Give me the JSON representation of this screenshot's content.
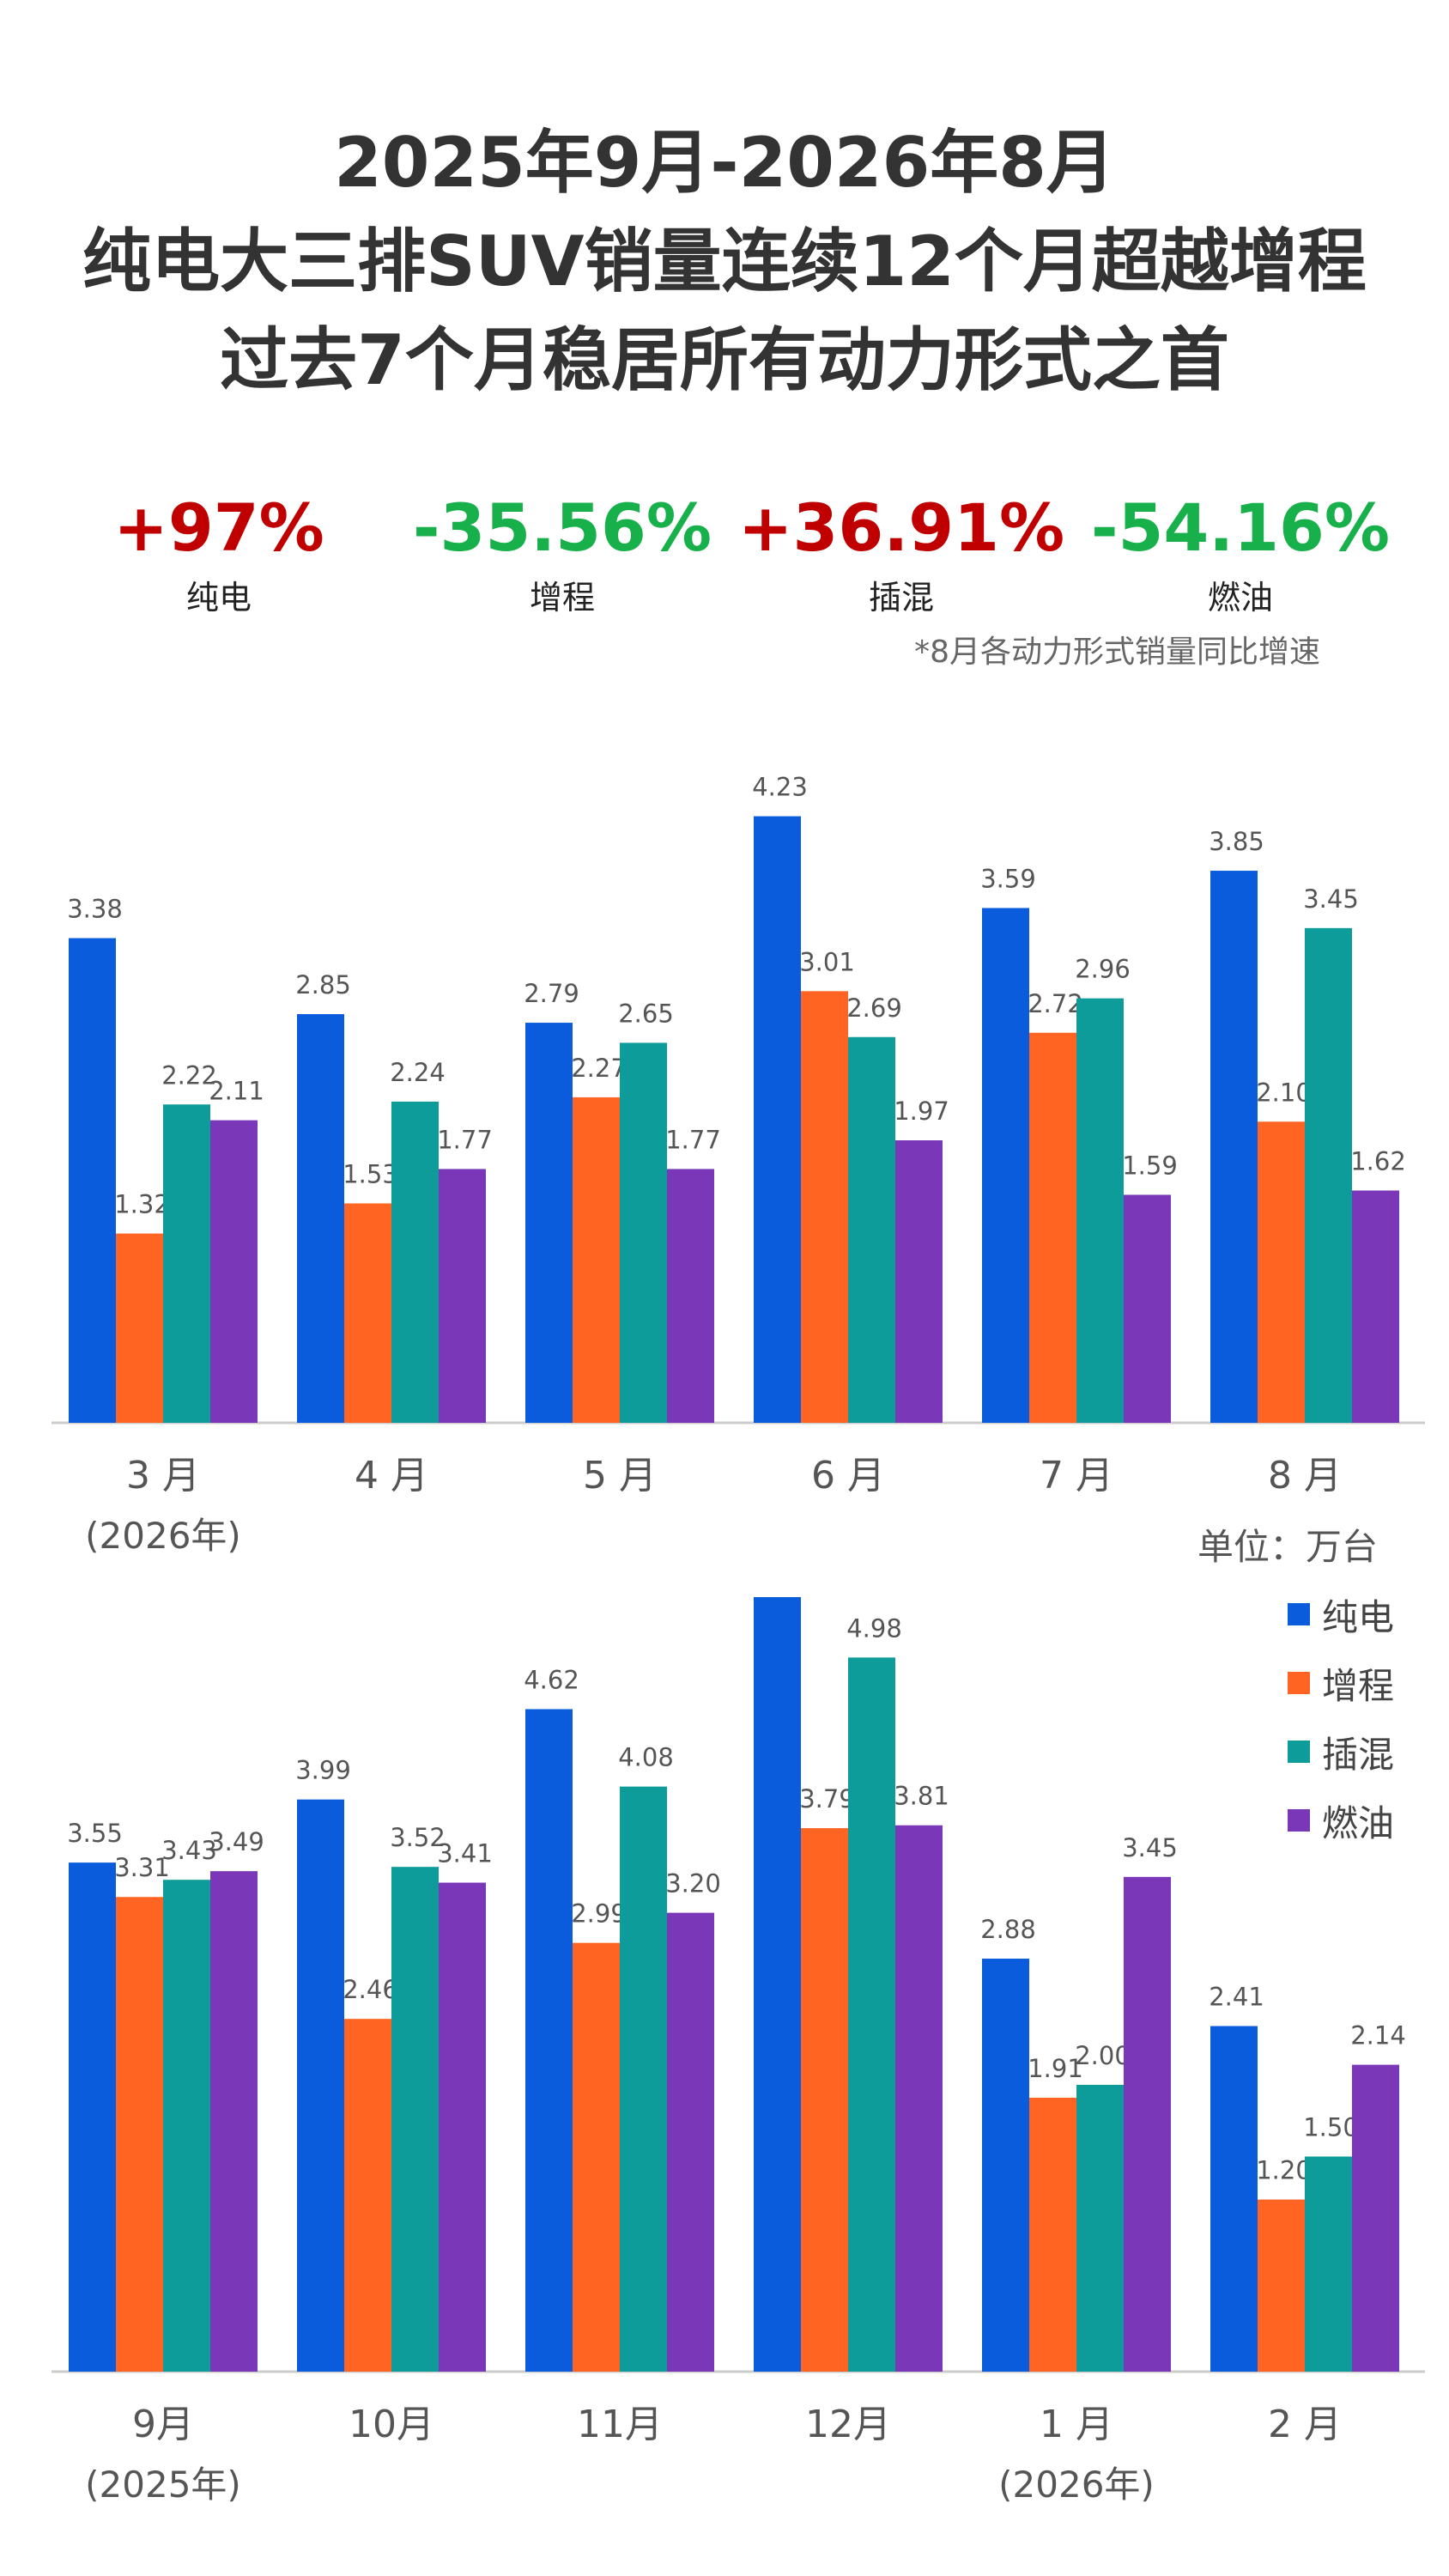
{
  "title_lines": [
    "2025年9月-2026年8月",
    "纯电大三排SUV销量连续12个月超越增程",
    "过去7个月稳居所有动力形式之首"
  ],
  "stats": [
    {
      "value": "+97%",
      "label": "纯电",
      "color": "#c00000"
    },
    {
      "value": "-35.56%",
      "label": "增程",
      "color": "#17b04a"
    },
    {
      "value": "+36.91%",
      "label": "插混",
      "color": "#c00000"
    },
    {
      "value": "-54.16%",
      "label": "燃油",
      "color": "#17b04a"
    }
  ],
  "footnote": "*8月各动力形式销量同比增速",
  "unit": "单位：万台",
  "legend": [
    {
      "name": "纯电",
      "color": "#0a5cdd"
    },
    {
      "name": "增程",
      "color": "#ff6422"
    },
    {
      "name": "插混",
      "color": "#0e9c9a"
    },
    {
      "name": "燃油",
      "color": "#7a38b8"
    }
  ],
  "chart_data": [
    {
      "type": "bar",
      "categories": [
        "3 月",
        "4 月",
        "5 月",
        "6 月",
        "7 月",
        "8 月"
      ],
      "sublabels": [
        "(2026年)",
        "",
        "",
        "",
        "",
        ""
      ],
      "series": [
        {
          "name": "纯电",
          "values": [
            3.38,
            2.85,
            2.79,
            4.23,
            3.59,
            3.85
          ]
        },
        {
          "name": "增程",
          "values": [
            1.32,
            1.53,
            2.27,
            3.01,
            2.72,
            2.1
          ]
        },
        {
          "name": "插混",
          "values": [
            2.22,
            2.24,
            2.65,
            2.69,
            2.96,
            3.45
          ]
        },
        {
          "name": "燃油",
          "values": [
            2.11,
            1.77,
            1.77,
            1.97,
            1.59,
            1.62
          ]
        }
      ]
    },
    {
      "type": "bar",
      "categories": [
        "9月",
        "10月",
        "11月",
        "12月",
        "1 月",
        "2 月"
      ],
      "sublabels": [
        "(2025年)",
        "",
        "",
        "",
        "(2026年)",
        ""
      ],
      "series": [
        {
          "name": "纯电",
          "values": [
            3.55,
            3.99,
            4.62,
            5.45,
            2.88,
            2.41
          ]
        },
        {
          "name": "增程",
          "values": [
            3.31,
            2.46,
            2.99,
            3.79,
            1.91,
            1.2
          ]
        },
        {
          "name": "插混",
          "values": [
            3.43,
            3.52,
            4.08,
            4.98,
            2.0,
            1.5
          ]
        },
        {
          "name": "燃油",
          "values": [
            3.49,
            3.41,
            3.2,
            3.81,
            3.45,
            2.14
          ]
        }
      ]
    }
  ]
}
